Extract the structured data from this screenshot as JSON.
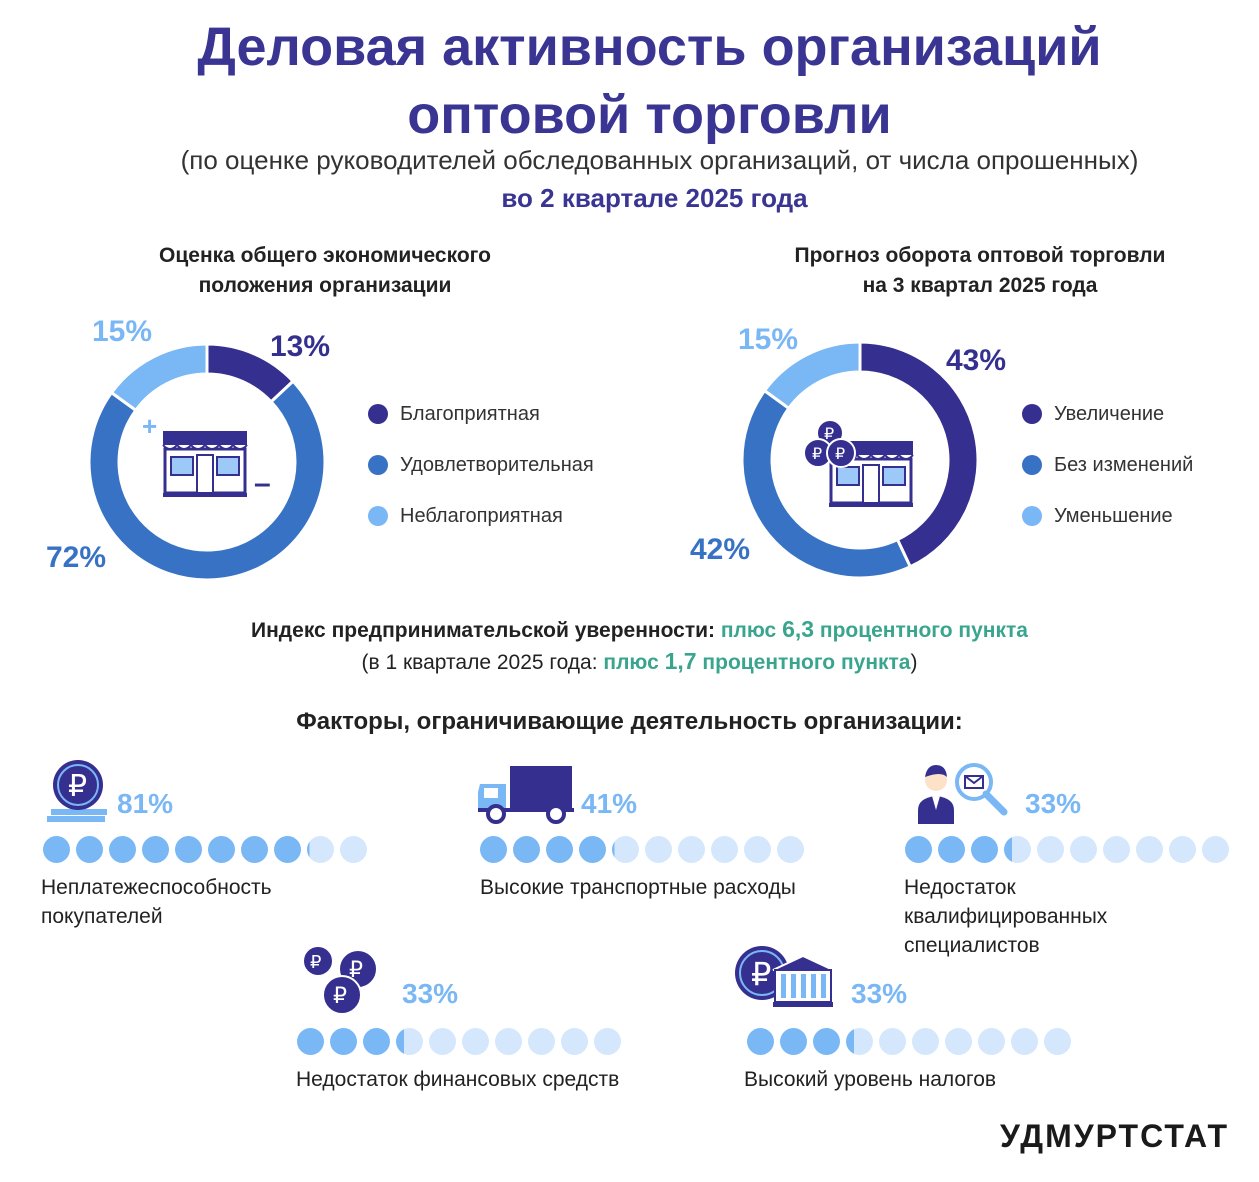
{
  "header": {
    "title_line1": "Деловая активность организаций",
    "title_line2": "оптовой торговли",
    "subtitle": "(по оценке руководителей обследованных организаций, от числа опрошенных)",
    "period": "во 2 квартале 2025 года"
  },
  "chart_data": [
    {
      "type": "pie",
      "title": "Оценка общего экономического положения организации",
      "categories": [
        "Благоприятная",
        "Удовлетворительная",
        "Неблагоприятная"
      ],
      "values": [
        13,
        72,
        15
      ],
      "value_labels": [
        "13%",
        "72%",
        "15%"
      ],
      "colors": [
        "#352f8f",
        "#3872c4",
        "#7ab7f5"
      ],
      "donut": true
    },
    {
      "type": "pie",
      "title": "Прогноз оборота оптовой торговли на 3 квартал 2025 года",
      "categories": [
        "Увеличение",
        "Без изменений",
        "Уменьшение"
      ],
      "values": [
        43,
        42,
        15
      ],
      "value_labels": [
        "43%",
        "42%",
        "15%"
      ],
      "colors": [
        "#352f8f",
        "#3872c4",
        "#7ab7f5"
      ],
      "donut": true
    },
    {
      "type": "bar",
      "title": "Факторы, ограничивающие деятельность организации:",
      "categories": [
        "Неплатежеспособность покупателей",
        "Высокие транспортные расходы",
        "Недостаток квалифицированных специалистов",
        "Недостаток финансовых средств",
        "Высокий уровень налогов"
      ],
      "values": [
        81,
        41,
        33,
        33,
        33
      ],
      "value_labels": [
        "81%",
        "41%",
        "33%",
        "33%",
        "33%"
      ],
      "colors": {
        "filled": "#7ab7f5",
        "empty": "#d4e7fd"
      }
    }
  ],
  "chart1": {
    "title_line1": "Оценка общего экономического",
    "title_line2": "положения организации",
    "labels": [
      "13%",
      "72%",
      "15%"
    ],
    "legend": [
      "Благоприятная",
      "Удовлетворительная",
      "Неблагоприятная"
    ],
    "plus": "+",
    "minus": "–"
  },
  "chart2": {
    "title_line1": "Прогноз оборота оптовой торговли",
    "title_line2": "на 3 квартал 2025 года",
    "labels": [
      "43%",
      "42%",
      "15%"
    ],
    "legend": [
      "Увеличение",
      "Без изменений",
      "Уменьшение"
    ]
  },
  "index": {
    "line1_prefix": "Индекс предпринимательской уверенности: ",
    "line1_value_a": "плюс ",
    "line1_value_num": "6,3",
    "line1_value_b": " процентного пункта",
    "line2_prefix": "(в 1 квартале 2025 года: ",
    "line2_value_a": "плюс ",
    "line2_value_num": "1,7",
    "line2_value_b": " процентного пункта",
    "line2_suffix": ")"
  },
  "factors": {
    "title": "Факторы, ограничивающие деятельность организации:",
    "items": [
      {
        "pct": "81%",
        "label_lines": [
          "Неплатежеспособность",
          "покупателей"
        ],
        "icon": "ruble-coin-stack-icon"
      },
      {
        "pct": "41%",
        "label_lines": [
          "Высокие транспортные расходы"
        ],
        "icon": "truck-icon"
      },
      {
        "pct": "33%",
        "label_lines": [
          "Недостаток",
          "квалифицированных",
          "специалистов"
        ],
        "icon": "specialist-search-icon"
      },
      {
        "pct": "33%",
        "label_lines": [
          "Недостаток финансовых средств"
        ],
        "icon": "ruble-coins-icon"
      },
      {
        "pct": "33%",
        "label_lines": [
          "Высокий уровень налогов"
        ],
        "icon": "tax-building-icon"
      }
    ]
  },
  "brand": "УДМУРТСТАТ"
}
